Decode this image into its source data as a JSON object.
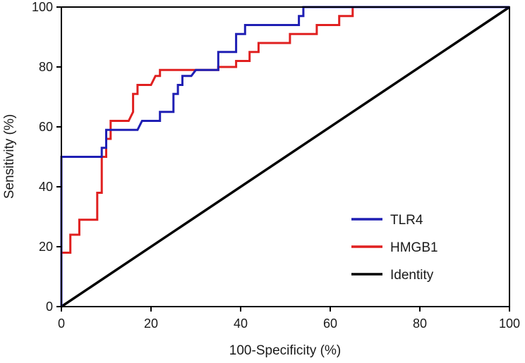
{
  "chart_data": {
    "type": "line",
    "title": "",
    "xlabel": "100-Specificity (%)",
    "ylabel": "Sensitivity (%)",
    "xlim": [
      0,
      100
    ],
    "ylim": [
      0,
      100
    ],
    "xticks": [
      0,
      20,
      40,
      60,
      80,
      100
    ],
    "yticks": [
      0,
      20,
      40,
      60,
      80,
      100
    ],
    "grid": false,
    "legend_position": "bottom-right",
    "series": [
      {
        "name": "TLR4",
        "color": "#1f1fb4",
        "step": true,
        "points": [
          [
            0,
            0
          ],
          [
            0,
            50
          ],
          [
            9,
            50
          ],
          [
            9,
            53
          ],
          [
            10,
            53
          ],
          [
            10,
            59
          ],
          [
            17,
            59
          ],
          [
            18,
            62
          ],
          [
            22,
            62
          ],
          [
            22,
            65
          ],
          [
            25,
            65
          ],
          [
            25,
            71
          ],
          [
            26,
            71
          ],
          [
            26,
            74
          ],
          [
            27,
            74
          ],
          [
            27,
            77
          ],
          [
            29,
            77
          ],
          [
            30,
            79
          ],
          [
            35,
            79
          ],
          [
            35,
            85
          ],
          [
            39,
            85
          ],
          [
            39,
            91
          ],
          [
            41,
            91
          ],
          [
            41,
            94
          ],
          [
            53,
            94
          ],
          [
            53,
            97
          ],
          [
            54,
            97
          ],
          [
            54,
            100
          ],
          [
            100,
            100
          ]
        ]
      },
      {
        "name": "HMGB1",
        "color": "#e02020",
        "step": true,
        "points": [
          [
            0,
            0
          ],
          [
            0,
            18
          ],
          [
            2,
            18
          ],
          [
            2,
            24
          ],
          [
            4,
            24
          ],
          [
            4,
            29
          ],
          [
            8,
            29
          ],
          [
            8,
            38
          ],
          [
            9,
            38
          ],
          [
            9,
            50
          ],
          [
            10,
            50
          ],
          [
            10,
            56
          ],
          [
            11,
            56
          ],
          [
            11,
            62
          ],
          [
            15,
            62
          ],
          [
            16,
            65
          ],
          [
            16,
            71
          ],
          [
            17,
            71
          ],
          [
            17,
            74
          ],
          [
            20,
            74
          ],
          [
            21,
            77
          ],
          [
            22,
            77
          ],
          [
            22,
            79
          ],
          [
            35,
            79
          ],
          [
            35,
            80
          ],
          [
            39,
            80
          ],
          [
            39,
            82
          ],
          [
            42,
            82
          ],
          [
            42,
            85
          ],
          [
            44,
            85
          ],
          [
            44,
            88
          ],
          [
            51,
            88
          ],
          [
            51,
            91
          ],
          [
            57,
            91
          ],
          [
            57,
            94
          ],
          [
            62,
            94
          ],
          [
            62,
            97
          ],
          [
            65,
            97
          ],
          [
            65,
            100
          ],
          [
            100,
            100
          ]
        ]
      },
      {
        "name": "Identity",
        "color": "#000000",
        "step": false,
        "points": [
          [
            0,
            0
          ],
          [
            100,
            100
          ]
        ]
      }
    ]
  }
}
